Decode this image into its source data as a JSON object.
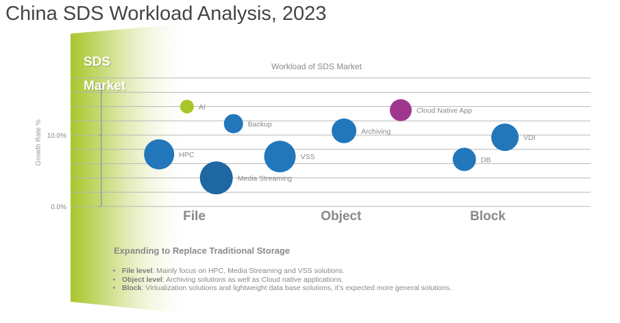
{
  "title": "China SDS Workload Analysis, 2023",
  "side_label": [
    "SDS",
    "Market"
  ],
  "colors": {
    "blue": "#2277bb",
    "dark_blue": "#1e67a3",
    "green": "#a8c62a",
    "purple": "#a0378e",
    "grid": "#b5b5b5",
    "text": "#888888"
  },
  "chart_data": {
    "type": "scatter",
    "title": "Workload of SDS Market",
    "ylabel": "Growth Rate %",
    "xlabel": "",
    "ylim": [
      0,
      18
    ],
    "xlim": [
      0,
      10
    ],
    "y_ticks": [
      {
        "value": 0,
        "label": "0.0%"
      },
      {
        "value": 10,
        "label": "10.0%"
      }
    ],
    "grid": true,
    "categories": [
      {
        "label": "File",
        "x": 1.9
      },
      {
        "label": "Object",
        "x": 4.9
      },
      {
        "label": "Block",
        "x": 7.9
      }
    ],
    "points": [
      {
        "name": "AI",
        "x": 1.75,
        "y": 14.0,
        "size": 10,
        "color": "green"
      },
      {
        "name": "Backup",
        "x": 2.7,
        "y": 11.6,
        "size": 14,
        "color": "blue"
      },
      {
        "name": "HPC",
        "x": 1.18,
        "y": 7.3,
        "size": 22,
        "color": "blue"
      },
      {
        "name": "Media Streaming",
        "x": 2.35,
        "y": 4.0,
        "size": 24,
        "color": "dark_blue"
      },
      {
        "name": "VSS",
        "x": 3.65,
        "y": 7.0,
        "size": 23,
        "color": "blue"
      },
      {
        "name": "Archiving",
        "x": 4.96,
        "y": 10.6,
        "size": 18,
        "color": "blue"
      },
      {
        "name": "Cloud Native App",
        "x": 6.12,
        "y": 13.5,
        "size": 16,
        "color": "purple"
      },
      {
        "name": "DB",
        "x": 7.42,
        "y": 6.6,
        "size": 17,
        "color": "blue"
      },
      {
        "name": "VDI",
        "x": 8.25,
        "y": 9.7,
        "size": 20,
        "color": "blue"
      }
    ]
  },
  "notes": {
    "heading": "Expanding to Replace Traditional Storage",
    "items": [
      {
        "label": "File level",
        "text": ": Mainly focus on HPC, Media Streaming and VSS solutions."
      },
      {
        "label": "Object level",
        "text": ":  Archiving solutions as well as Cloud native applications."
      },
      {
        "label": "Block",
        "text": ": Virtualization solutions and lightweight data base solutions, it’s expected more general solutions."
      }
    ]
  }
}
